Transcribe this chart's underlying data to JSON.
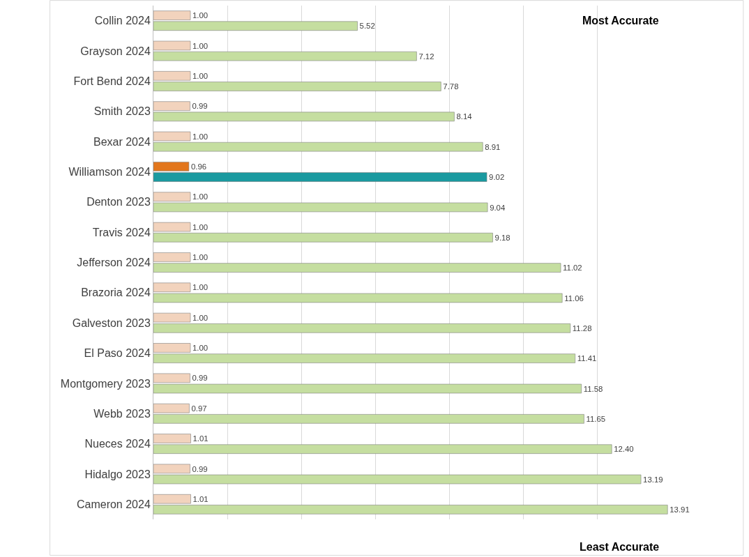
{
  "chart_data": {
    "type": "bar",
    "orientation": "horizontal",
    "categories": [
      "Collin 2024",
      "Grayson 2024",
      "Fort Bend 2024",
      "Smith 2023",
      "Bexar 2024",
      "Williamson 2024",
      "Denton 2023",
      "Travis 2024",
      "Jefferson 2024",
      "Brazoria 2024",
      "Galveston 2023",
      "El Paso 2024",
      "Montgomery 2023",
      "Webb 2023",
      "Nueces 2024",
      "Hidalgo 2023",
      "Cameron 2024"
    ],
    "series": [
      {
        "colors": [
          "#f2d3bd",
          "#f2d3bd",
          "#f2d3bd",
          "#f2d3bd",
          "#f2d3bd",
          "#e2761c",
          "#f2d3bd",
          "#f2d3bd",
          "#f2d3bd",
          "#f2d3bd",
          "#f2d3bd",
          "#f2d3bd",
          "#f2d3bd",
          "#f2d3bd",
          "#f2d3bd",
          "#f2d3bd",
          "#f2d3bd"
        ],
        "values": [
          1.0,
          1.0,
          1.0,
          0.99,
          1.0,
          0.96,
          1.0,
          1.0,
          1.0,
          1.0,
          1.0,
          1.0,
          0.99,
          0.97,
          1.01,
          0.99,
          1.01
        ],
        "value_labels": [
          "1.00",
          "1.00",
          "1.00",
          "0.99",
          "1.00",
          "0.96",
          "1.00",
          "1.00",
          "1.00",
          "1.00",
          "1.00",
          "1.00",
          "0.99",
          "0.97",
          "1.01",
          "0.99",
          "1.01"
        ]
      },
      {
        "colors": [
          "#c5dea0",
          "#c5dea0",
          "#c5dea0",
          "#c5dea0",
          "#c5dea0",
          "#1a9aa0",
          "#c5dea0",
          "#c5dea0",
          "#c5dea0",
          "#c5dea0",
          "#c5dea0",
          "#c5dea0",
          "#c5dea0",
          "#c5dea0",
          "#c5dea0",
          "#c5dea0",
          "#c5dea0"
        ],
        "values": [
          5.52,
          7.12,
          7.78,
          8.14,
          8.91,
          9.02,
          9.04,
          9.18,
          11.02,
          11.06,
          11.28,
          11.41,
          11.58,
          11.65,
          12.4,
          13.19,
          13.91
        ],
        "value_labels": [
          "5.52",
          "7.12",
          "7.78",
          "8.14",
          "8.91",
          "9.02",
          "9.04",
          "9.18",
          "11.02",
          "11.06",
          "11.28",
          "11.41",
          "11.58",
          "11.65",
          "12.40",
          "13.19",
          "13.91"
        ]
      }
    ],
    "xlim": [
      0,
      14
    ],
    "tick_labels": "y",
    "grid": "x",
    "annotations": [
      "Most Accurate",
      "Least Accurate"
    ]
  }
}
